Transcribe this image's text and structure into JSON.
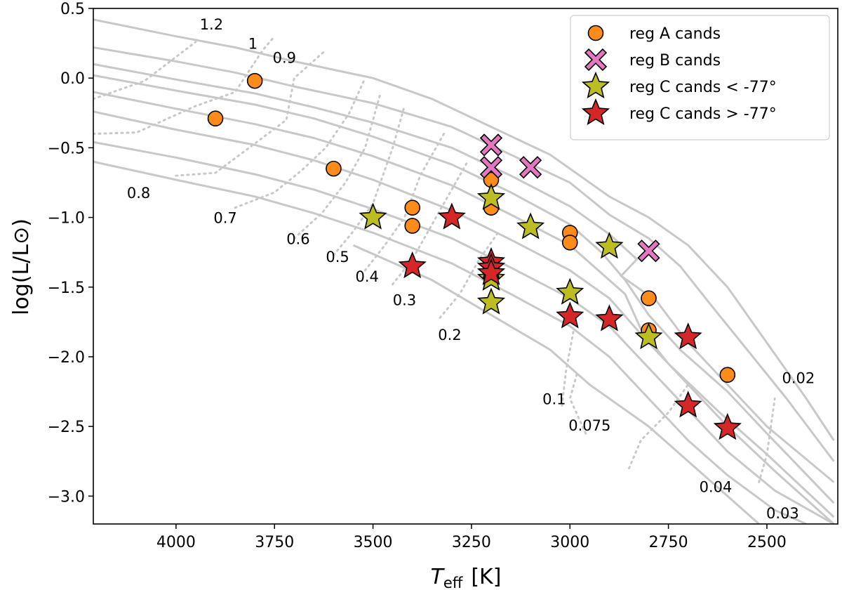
{
  "chart_data": {
    "type": "scatter",
    "title": "",
    "xlabel_main": "T",
    "xlabel_sub": "eff",
    "xlabel_unit": "[K]",
    "ylabel": "log(L/L⊙)",
    "xlim": [
      4210,
      2320
    ],
    "ylim": [
      -3.2,
      0.5
    ],
    "x_ticks": [
      {
        "value": 4000,
        "label": "4000"
      },
      {
        "value": 3750,
        "label": "3750"
      },
      {
        "value": 3500,
        "label": "3500"
      },
      {
        "value": 3250,
        "label": "3250"
      },
      {
        "value": 3000,
        "label": "3000"
      },
      {
        "value": 2750,
        "label": "2750"
      },
      {
        "value": 2500,
        "label": "2500"
      }
    ],
    "y_ticks": [
      {
        "value": 0.5,
        "label": "0.5"
      },
      {
        "value": 0.0,
        "label": "0.0"
      },
      {
        "value": -0.5,
        "label": "−0.5"
      },
      {
        "value": -1.0,
        "label": "−1.0"
      },
      {
        "value": -1.5,
        "label": "−1.5"
      },
      {
        "value": -2.0,
        "label": "−2.0"
      },
      {
        "value": -2.5,
        "label": "−2.5"
      },
      {
        "value": -3.0,
        "label": "−3.0"
      }
    ],
    "grid": false,
    "legend_position": "top-right",
    "colors": {
      "isochrone": "#c8c8c8",
      "regA": "#ff8c1a",
      "regB": "#e377c2",
      "regC_lt": "#bcbd22",
      "regC_gt": "#d62728",
      "edge": "#000000"
    },
    "series": [
      {
        "name": "reg A cands",
        "marker": "circle",
        "points": [
          [
            3800,
            -0.02
          ],
          [
            3900,
            -0.29
          ],
          [
            3600,
            -0.65
          ],
          [
            3400,
            -0.93
          ],
          [
            3400,
            -1.06
          ],
          [
            3200,
            -0.73
          ],
          [
            3200,
            -0.93
          ],
          [
            3000,
            -1.11
          ],
          [
            3000,
            -1.18
          ],
          [
            2800,
            -1.58
          ],
          [
            2800,
            -1.81
          ],
          [
            2600,
            -2.13
          ]
        ]
      },
      {
        "name": "reg B cands",
        "marker": "x",
        "points": [
          [
            3200,
            -0.48
          ],
          [
            3200,
            -0.64
          ],
          [
            3100,
            -0.64
          ],
          [
            2800,
            -1.24
          ]
        ]
      },
      {
        "name": "reg C cands  <  -77°",
        "marker": "star",
        "points": [
          [
            3500,
            -1.0
          ],
          [
            3200,
            -0.86
          ],
          [
            3100,
            -1.07
          ],
          [
            2900,
            -1.21
          ],
          [
            3000,
            -1.54
          ],
          [
            2800,
            -1.86
          ],
          [
            3200,
            -1.44
          ],
          [
            3200,
            -1.61
          ]
        ]
      },
      {
        "name": "reg C cands  >  -77°",
        "marker": "star",
        "points": [
          [
            3300,
            -1.0
          ],
          [
            3400,
            -1.35
          ],
          [
            3200,
            -1.32
          ],
          [
            3200,
            -1.36
          ],
          [
            3200,
            -1.4
          ],
          [
            3000,
            -1.71
          ],
          [
            2900,
            -1.73
          ],
          [
            2700,
            -1.86
          ],
          [
            2700,
            -2.35
          ],
          [
            2600,
            -2.51
          ]
        ]
      }
    ],
    "isochrones": [
      [
        [
          4210,
          0.42
        ],
        [
          4000,
          0.3
        ],
        [
          3850,
          0.22
        ],
        [
          3700,
          0.12
        ],
        [
          3500,
          0.0
        ],
        [
          3350,
          -0.15
        ],
        [
          3200,
          -0.35
        ],
        [
          3050,
          -0.55
        ],
        [
          2900,
          -0.85
        ],
        [
          2800,
          -1.0
        ],
        [
          2700,
          -1.2
        ],
        [
          2600,
          -1.5
        ],
        [
          2500,
          -1.9
        ],
        [
          2400,
          -2.3
        ],
        [
          2330,
          -2.6
        ]
      ],
      [
        [
          4210,
          0.22
        ],
        [
          4000,
          0.12
        ],
        [
          3850,
          0.04
        ],
        [
          3700,
          -0.06
        ],
        [
          3500,
          -0.18
        ],
        [
          3300,
          -0.35
        ],
        [
          3150,
          -0.55
        ],
        [
          3000,
          -0.75
        ],
        [
          2900,
          -0.98
        ],
        [
          2800,
          -1.15
        ],
        [
          2720,
          -1.35
        ],
        [
          2650,
          -1.6
        ],
        [
          2550,
          -1.95
        ],
        [
          2450,
          -2.3
        ],
        [
          2330,
          -2.75
        ]
      ],
      [
        [
          4210,
          0.1
        ],
        [
          4000,
          -0.01
        ],
        [
          3800,
          -0.11
        ],
        [
          3650,
          -0.21
        ],
        [
          3500,
          -0.32
        ],
        [
          3300,
          -0.5
        ],
        [
          3150,
          -0.7
        ],
        [
          3000,
          -0.92
        ],
        [
          2900,
          -1.12
        ],
        [
          2830,
          -1.3
        ],
        [
          2870,
          -1.42
        ],
        [
          2780,
          -1.6
        ],
        [
          2700,
          -1.9
        ],
        [
          2600,
          -2.2
        ],
        [
          2500,
          -2.5
        ],
        [
          2330,
          -2.9
        ]
      ],
      [
        [
          4210,
          0.02
        ],
        [
          4000,
          -0.09
        ],
        [
          3800,
          -0.19
        ],
        [
          3650,
          -0.29
        ],
        [
          3500,
          -0.42
        ],
        [
          3300,
          -0.62
        ],
        [
          3150,
          -0.82
        ],
        [
          3000,
          -1.05
        ],
        [
          2920,
          -1.25
        ],
        [
          2860,
          -1.45
        ],
        [
          2800,
          -1.7
        ],
        [
          2720,
          -1.95
        ],
        [
          2600,
          -2.25
        ],
        [
          2500,
          -2.55
        ],
        [
          2330,
          -3.05
        ]
      ],
      [
        [
          4210,
          -0.1
        ],
        [
          4000,
          -0.22
        ],
        [
          3800,
          -0.33
        ],
        [
          3650,
          -0.43
        ],
        [
          3500,
          -0.56
        ],
        [
          3300,
          -0.77
        ],
        [
          3150,
          -0.98
        ],
        [
          3000,
          -1.2
        ],
        [
          2920,
          -1.4
        ],
        [
          2860,
          -1.55
        ],
        [
          2820,
          -1.8
        ],
        [
          2750,
          -2.05
        ],
        [
          2620,
          -2.4
        ],
        [
          2500,
          -2.7
        ],
        [
          2330,
          -3.15
        ]
      ],
      [
        [
          4210,
          -0.24
        ],
        [
          4000,
          -0.37
        ],
        [
          3800,
          -0.48
        ],
        [
          3650,
          -0.59
        ],
        [
          3500,
          -0.73
        ],
        [
          3300,
          -0.95
        ],
        [
          3150,
          -1.16
        ],
        [
          3000,
          -1.38
        ],
        [
          2900,
          -1.58
        ],
        [
          2800,
          -1.9
        ],
        [
          2700,
          -2.2
        ],
        [
          2600,
          -2.5
        ],
        [
          2480,
          -2.82
        ],
        [
          2330,
          -3.2
        ]
      ],
      [
        [
          4210,
          -0.46
        ],
        [
          4000,
          -0.57
        ],
        [
          3800,
          -0.69
        ],
        [
          3650,
          -0.8
        ],
        [
          3500,
          -0.94
        ],
        [
          3300,
          -1.15
        ],
        [
          3150,
          -1.36
        ],
        [
          3000,
          -1.58
        ],
        [
          2900,
          -1.78
        ],
        [
          2800,
          -2.08
        ],
        [
          2700,
          -2.38
        ],
        [
          2600,
          -2.68
        ],
        [
          2480,
          -2.96
        ],
        [
          2330,
          -3.2
        ]
      ],
      [
        [
          4210,
          -0.6
        ],
        [
          4000,
          -0.73
        ],
        [
          3800,
          -0.85
        ],
        [
          3650,
          -0.97
        ],
        [
          3500,
          -1.11
        ],
        [
          3300,
          -1.33
        ],
        [
          3150,
          -1.55
        ],
        [
          3000,
          -1.78
        ],
        [
          2900,
          -2.0
        ],
        [
          2800,
          -2.3
        ],
        [
          2700,
          -2.6
        ],
        [
          2600,
          -2.85
        ],
        [
          2480,
          -3.1
        ],
        [
          2400,
          -3.2
        ]
      ],
      [
        [
          3550,
          -1.2
        ],
        [
          3350,
          -1.45
        ],
        [
          3200,
          -1.7
        ],
        [
          3050,
          -1.95
        ],
        [
          2950,
          -2.2
        ],
        [
          2800,
          -2.5
        ],
        [
          2700,
          -2.75
        ],
        [
          2600,
          -3.0
        ],
        [
          2520,
          -3.2
        ]
      ]
    ],
    "mass_tracks": [
      [
        [
          4210,
          -0.15
        ],
        [
          4080,
          -0.02
        ],
        [
          3950,
          0.26
        ]
      ],
      [
        [
          4210,
          -0.4
        ],
        [
          4100,
          -0.39
        ],
        [
          3950,
          -0.2
        ],
        [
          3850,
          -0.1
        ],
        [
          3780,
          0.2
        ],
        [
          3750,
          0.3
        ]
      ],
      [
        [
          4000,
          -0.7
        ],
        [
          3900,
          -0.68
        ],
        [
          3800,
          -0.47
        ],
        [
          3720,
          -0.3
        ],
        [
          3700,
          0.0
        ],
        [
          3620,
          0.2
        ]
      ],
      [
        [
          3850,
          -0.93
        ],
        [
          3750,
          -0.82
        ],
        [
          3680,
          -0.66
        ],
        [
          3620,
          -0.5
        ],
        [
          3560,
          -0.25
        ],
        [
          3520,
          0.0
        ]
      ],
      [
        [
          3700,
          -1.15
        ],
        [
          3630,
          -0.97
        ],
        [
          3570,
          -0.75
        ],
        [
          3520,
          -0.5
        ],
        [
          3480,
          -0.1
        ]
      ],
      [
        [
          3600,
          -1.27
        ],
        [
          3550,
          -1.1
        ],
        [
          3500,
          -0.9
        ],
        [
          3450,
          -0.5
        ],
        [
          3420,
          -0.2
        ]
      ],
      [
        [
          3520,
          -1.38
        ],
        [
          3470,
          -1.2
        ],
        [
          3420,
          -1.0
        ],
        [
          3380,
          -0.7
        ],
        [
          3320,
          -0.4
        ]
      ],
      [
        [
          3450,
          -1.48
        ],
        [
          3400,
          -1.3
        ],
        [
          3370,
          -1.15
        ],
        [
          3320,
          -0.9
        ],
        [
          3260,
          -0.6
        ]
      ],
      [
        [
          3330,
          -1.72
        ],
        [
          3280,
          -1.55
        ],
        [
          3230,
          -1.3
        ],
        [
          3180,
          -1.1
        ]
      ],
      [
        [
          3020,
          -2.35
        ],
        [
          3010,
          -2.1
        ],
        [
          2990,
          -1.8
        ]
      ],
      [
        [
          2960,
          -2.55
        ],
        [
          3000,
          -2.3
        ],
        [
          2980,
          -2.1
        ]
      ],
      [
        [
          2850,
          -2.8
        ],
        [
          2820,
          -2.6
        ],
        [
          2750,
          -2.4
        ],
        [
          2700,
          -2.2
        ]
      ],
      [
        [
          2520,
          -2.9
        ],
        [
          2500,
          -2.7
        ],
        [
          2490,
          -2.5
        ],
        [
          2480,
          -2.3
        ]
      ]
    ],
    "mass_labels": [
      {
        "text": "1.2",
        "t": 3910,
        "logL": 0.35
      },
      {
        "text": "1",
        "t": 3805,
        "logL": 0.21
      },
      {
        "text": "0.9",
        "t": 3725,
        "logL": 0.11
      },
      {
        "text": "0.8",
        "t": 4095,
        "logL": -0.86
      },
      {
        "text": "0.7",
        "t": 3875,
        "logL": -1.04
      },
      {
        "text": "0.6",
        "t": 3690,
        "logL": -1.19
      },
      {
        "text": "0.5",
        "t": 3590,
        "logL": -1.32
      },
      {
        "text": "0.4",
        "t": 3515,
        "logL": -1.46
      },
      {
        "text": "0.3",
        "t": 3420,
        "logL": -1.63
      },
      {
        "text": "0.2",
        "t": 3305,
        "logL": -1.88
      },
      {
        "text": "0.1",
        "t": 3040,
        "logL": -2.34
      },
      {
        "text": "0.075",
        "t": 2950,
        "logL": -2.53
      },
      {
        "text": "0.04",
        "t": 2630,
        "logL": -2.97
      },
      {
        "text": "0.03",
        "t": 2460,
        "logL": -3.16
      },
      {
        "text": "0.02",
        "t": 2420,
        "logL": -2.19
      }
    ]
  }
}
